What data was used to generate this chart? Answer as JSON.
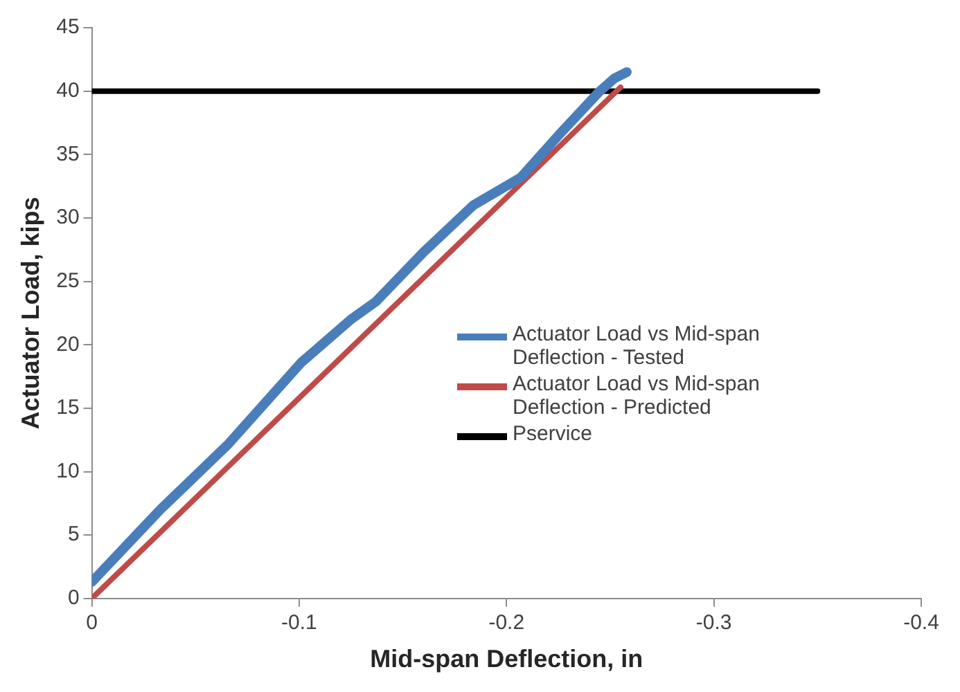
{
  "chart_data": {
    "type": "line",
    "xlabel": "Mid-span Deflection, in",
    "ylabel": "Actuator Load, kips",
    "xlim": [
      0,
      -0.4
    ],
    "xticks": [
      0,
      -0.1,
      -0.2,
      -0.3,
      -0.4
    ],
    "ylim": [
      0,
      45
    ],
    "yticks": [
      0,
      5,
      10,
      15,
      20,
      25,
      30,
      35,
      40,
      45
    ],
    "grid": false,
    "legend": "right",
    "marker": "none",
    "line_style": "solid",
    "series": [
      {
        "name": "Actuator Load vs Mid-span Deflection - Tested",
        "color": "#4a7ebb",
        "x": [
          0,
          -0.033,
          -0.066,
          -0.101,
          -0.125,
          -0.137,
          -0.16,
          -0.184,
          -0.207,
          -0.225,
          -0.245,
          -0.252,
          -0.258
        ],
        "values": [
          1.3,
          7,
          12.2,
          18.6,
          22,
          23.4,
          27.3,
          31,
          33.2,
          36.5,
          40,
          41,
          41.5
        ]
      },
      {
        "name": "Actuator Load vs Mid-span Deflection - Predicted",
        "color": "#be4b48",
        "x": [
          0,
          -0.255
        ],
        "values": [
          0,
          40.3
        ]
      },
      {
        "name": "Pservice",
        "color": "#000000",
        "x": [
          0,
          -0.35
        ],
        "values": [
          40,
          40
        ]
      }
    ]
  }
}
